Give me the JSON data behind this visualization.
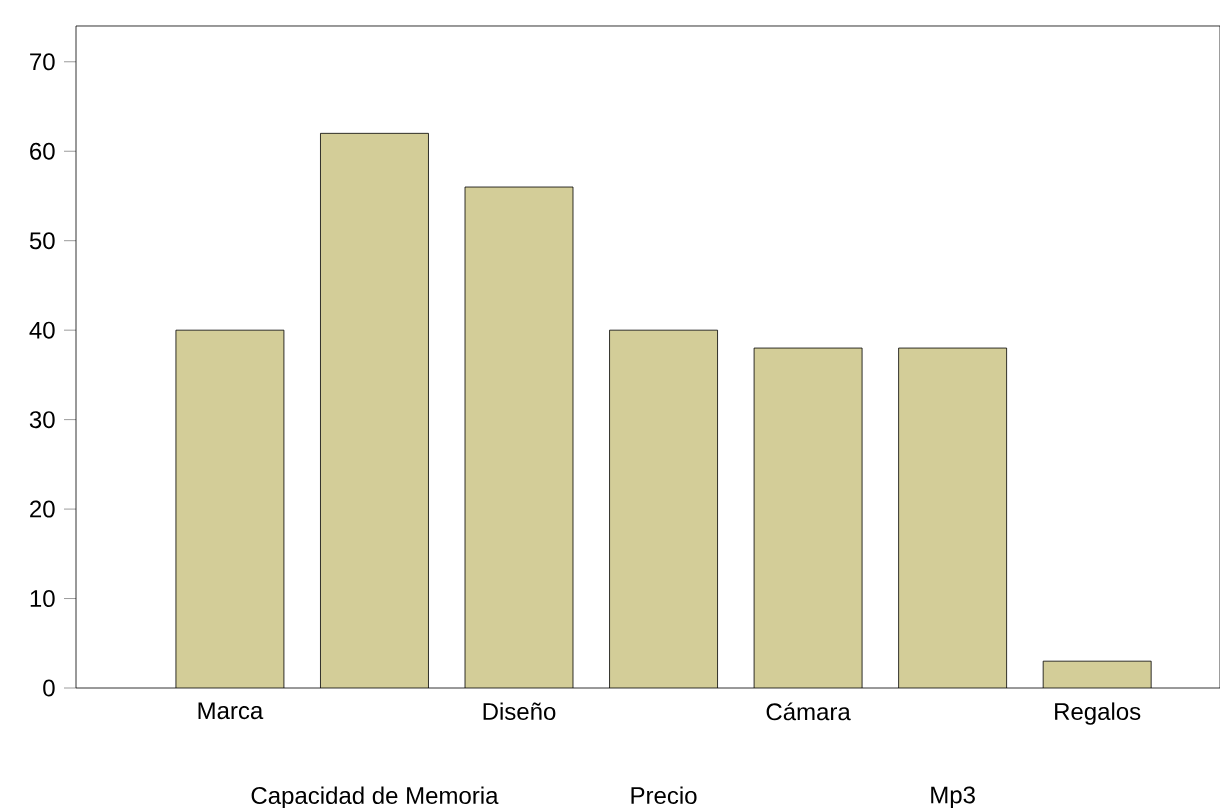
{
  "chart_data": {
    "type": "bar",
    "categories": [
      "Marca",
      "Capacidad de Memoria",
      "Diseño",
      "Precio",
      "Cámara",
      "Mp3",
      "Regalos"
    ],
    "values": [
      40,
      62,
      56,
      40,
      38,
      38,
      3
    ],
    "color": "#d3cd98",
    "ylim": [
      0,
      74
    ],
    "yticks": [
      0,
      10,
      20,
      30,
      40,
      50,
      60,
      70
    ],
    "grid": false
  }
}
